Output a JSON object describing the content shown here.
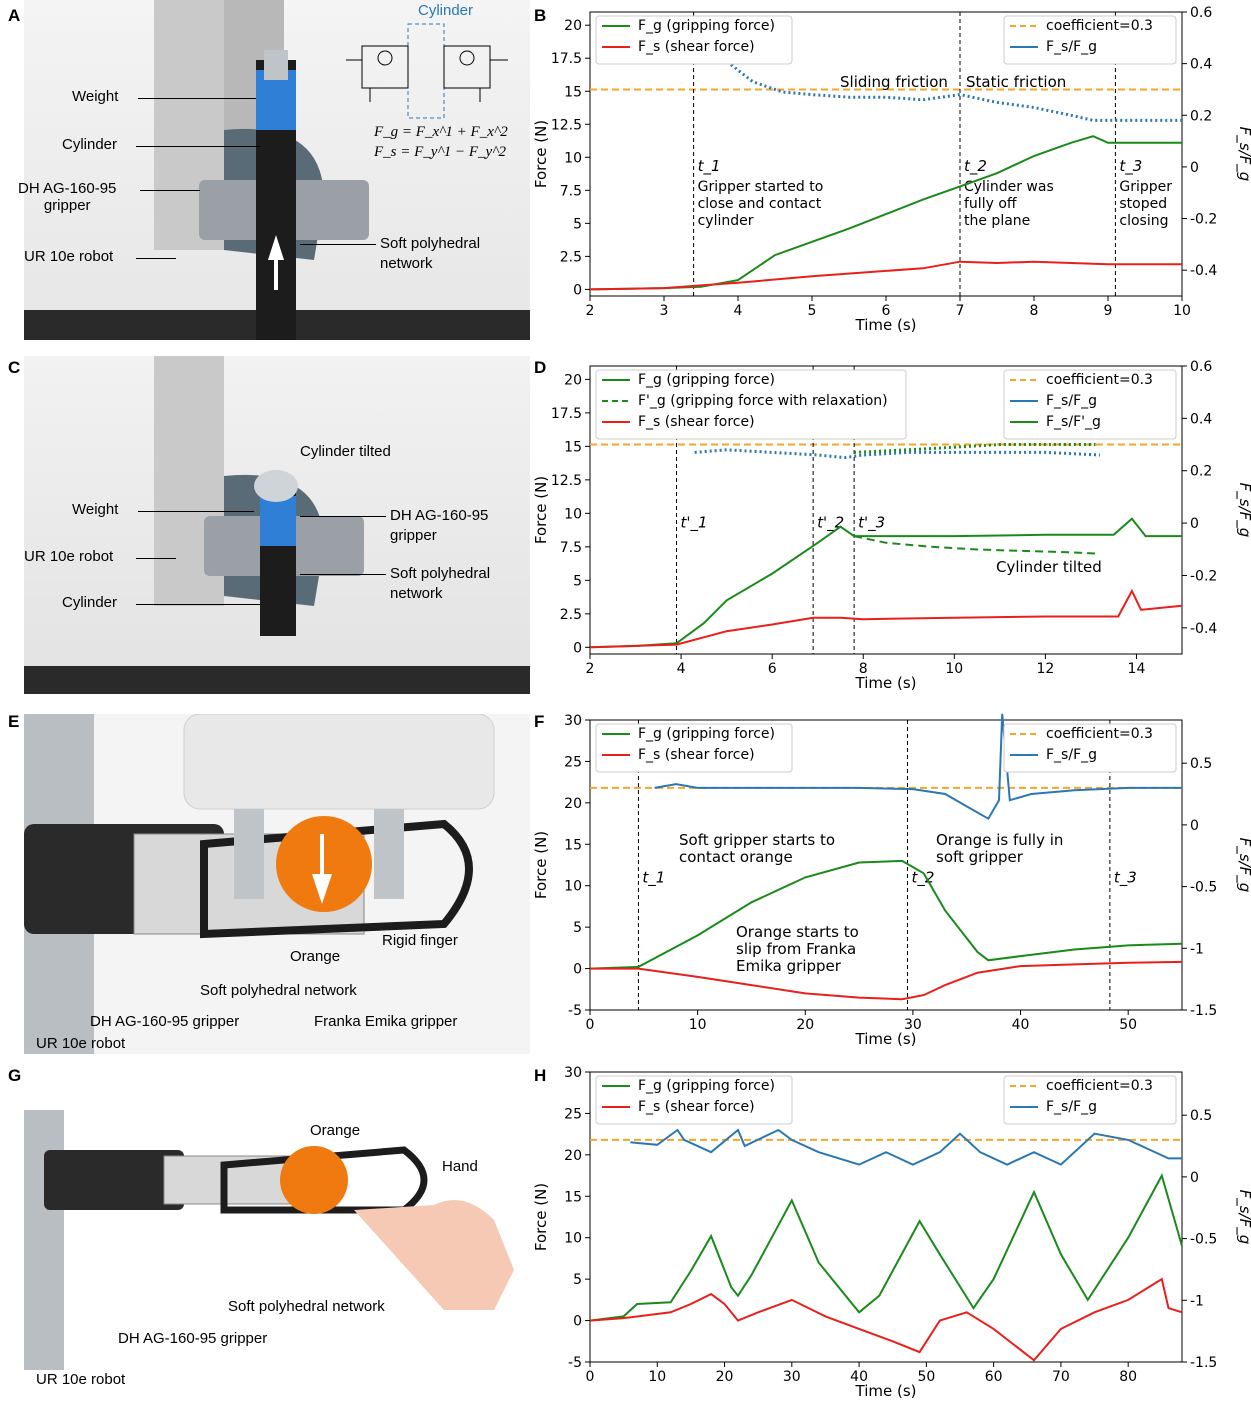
{
  "panels": {
    "a": {
      "letter": "A",
      "labels": {
        "weight": "Weight",
        "cylinder": "Cylinder",
        "gripper": "DH AG-160-95\ngripper",
        "robot": "UR 10e robot",
        "network": "Soft polyhedral\nnetwork"
      },
      "diagram": {
        "title": "Cylinder",
        "eq1": "F_g = F_x^1 + F_x^2",
        "eq2": "F_s = F_y^1 − F_y^2"
      }
    },
    "b": {
      "letter": "B"
    },
    "c": {
      "letter": "C",
      "labels": {
        "tilted": "Cylinder tilted",
        "weight": "Weight",
        "gripper": "DH AG-160-95\ngripper",
        "robot": "UR 10e robot",
        "network": "Soft polyhedral\nnetwork",
        "cylinder": "Cylinder"
      }
    },
    "d": {
      "letter": "D"
    },
    "e": {
      "letter": "E",
      "labels": {
        "rigid": "Rigid finger",
        "orange": "Orange",
        "network": "Soft polyhedral network",
        "dh": "DH AG-160-95 gripper",
        "franka": "Franka Emika gripper",
        "robot": "UR 10e robot"
      }
    },
    "f": {
      "letter": "F"
    },
    "g": {
      "letter": "G",
      "labels": {
        "orange": "Orange",
        "hand": "Hand",
        "network": "Soft polyhedral network",
        "dh": "DH AG-160-95 gripper",
        "robot": "UR 10e robot"
      }
    },
    "h": {
      "letter": "H"
    }
  },
  "colors": {
    "fg": "#1a8a1a",
    "fs": "#e8201c",
    "ratio": "#2a77b4",
    "coef": "#f5a623"
  },
  "chart_data": [
    {
      "id": "B",
      "type": "line",
      "xlabel": "Time (s)",
      "ylabel": "Force (N)",
      "y2label": "F_s/F_g",
      "xlim": [
        2,
        10
      ],
      "ylim": [
        -0.5,
        21
      ],
      "y2lim": [
        -0.5,
        0.6
      ],
      "xticks": [
        2,
        3,
        4,
        5,
        6,
        7,
        8,
        9,
        10
      ],
      "yticks": [
        0,
        2.5,
        5,
        7.5,
        10,
        12.5,
        15,
        17.5,
        20
      ],
      "y2ticks": [
        -0.4,
        -0.2,
        0,
        0.2,
        0.4,
        0.6
      ],
      "coefficient": 0.3,
      "legend_left": [
        "F_g (gripping force)",
        "F_s (shear force)"
      ],
      "legend_right": [
        "coefficient=0.3",
        "F_s/F_g"
      ],
      "series": [
        {
          "name": "F_g (gripping force)",
          "x": [
            2,
            3,
            3.5,
            4,
            4.5,
            5,
            5.5,
            6,
            6.5,
            7,
            7.5,
            8,
            8.5,
            8.8,
            9,
            10
          ],
          "y": [
            0,
            0.1,
            0.2,
            0.7,
            2.6,
            3.6,
            4.6,
            5.7,
            6.8,
            7.8,
            8.8,
            10.1,
            11.1,
            11.6,
            11.1,
            11.1
          ]
        },
        {
          "name": "F_s (shear force)",
          "x": [
            2,
            3,
            3.5,
            4,
            5,
            6,
            6.5,
            7,
            7.5,
            8,
            9,
            10
          ],
          "y": [
            0,
            0.1,
            0.3,
            0.5,
            1.0,
            1.4,
            1.6,
            2.1,
            2.0,
            2.1,
            1.9,
            1.9
          ]
        },
        {
          "name": "F_s/F_g",
          "x": [
            3.8,
            4.2,
            4.6,
            5.0,
            5.5,
            6.0,
            6.5,
            7.0,
            7.5,
            8.0,
            8.5,
            8.8,
            9.0,
            10
          ],
          "y": [
            0.42,
            0.33,
            0.29,
            0.28,
            0.27,
            0.27,
            0.26,
            0.28,
            0.25,
            0.23,
            0.2,
            0.18,
            0.18,
            0.18
          ]
        }
      ],
      "vlines": [
        {
          "x": 3.4,
          "label": "t_1",
          "text": "Gripper started to\nclose and contact\ncylinder"
        },
        {
          "x": 7.0,
          "label": "t_2",
          "text": "Cylinder was\nfully off\nthe plane"
        },
        {
          "x": 9.1,
          "label": "t_3",
          "text": "Gripper\nstoped\nclosing"
        }
      ],
      "annotations": [
        "Sliding friction",
        "Static friction"
      ]
    },
    {
      "id": "D",
      "type": "line",
      "xlabel": "Time (s)",
      "ylabel": "Force (N)",
      "y2label": "F_s/F_g",
      "xlim": [
        2,
        15
      ],
      "ylim": [
        -0.5,
        21
      ],
      "y2lim": [
        -0.5,
        0.6
      ],
      "xticks": [
        2,
        4,
        6,
        8,
        10,
        12,
        14
      ],
      "yticks": [
        0,
        2.5,
        5,
        7.5,
        10,
        12.5,
        15,
        17.5,
        20
      ],
      "y2ticks": [
        -0.4,
        -0.2,
        0,
        0.2,
        0.4,
        0.6
      ],
      "coefficient": 0.3,
      "legend_left": [
        "F_g (gripping force)",
        "F'_g (gripping force with relaxation)",
        "F_s (shear force)"
      ],
      "legend_right": [
        "coefficient=0.3",
        "F_s/F_g",
        "F_s/F'_g"
      ],
      "series": [
        {
          "name": "F_g (gripping force)",
          "x": [
            2,
            3,
            3.9,
            4.5,
            5,
            6,
            7,
            7.5,
            7.8,
            8.5,
            10,
            12,
            13.5,
            13.9,
            14.2,
            15
          ],
          "y": [
            0,
            0.1,
            0.3,
            1.8,
            3.5,
            5.5,
            7.8,
            9.0,
            8.3,
            8.3,
            8.3,
            8.4,
            8.4,
            9.6,
            8.3,
            8.3
          ]
        },
        {
          "name": "F'_g (gripping force with relaxation)",
          "x": [
            7.8,
            8.5,
            9.5,
            10.5,
            11.5,
            12.5,
            13.1
          ],
          "y": [
            8.3,
            7.8,
            7.5,
            7.3,
            7.2,
            7.1,
            7.0
          ]
        },
        {
          "name": "F_s (shear force)",
          "x": [
            2,
            3.9,
            5,
            6,
            6.9,
            7.5,
            8,
            10,
            12,
            13.6,
            13.9,
            14.1,
            15
          ],
          "y": [
            0,
            0.2,
            1.2,
            1.7,
            2.2,
            2.2,
            2.1,
            2.2,
            2.3,
            2.3,
            4.2,
            2.8,
            3.1
          ]
        },
        {
          "name": "F_s/F_g",
          "x": [
            4.3,
            5,
            6,
            7,
            7.6,
            8,
            9,
            10,
            11,
            12,
            13.2
          ],
          "y": [
            0.27,
            0.28,
            0.27,
            0.26,
            0.25,
            0.26,
            0.27,
            0.27,
            0.27,
            0.27,
            0.26
          ]
        },
        {
          "name": "F_s/F'_g",
          "x": [
            7.8,
            9,
            10,
            11,
            12,
            13.1
          ],
          "y": [
            0.27,
            0.28,
            0.29,
            0.3,
            0.3,
            0.3
          ]
        }
      ],
      "vlines": [
        {
          "x": 3.9,
          "label": "t'_1"
        },
        {
          "x": 6.9,
          "label": "t'_2"
        },
        {
          "x": 7.8,
          "label": "t'_3"
        }
      ],
      "annotations": [
        "Cylinder tilted"
      ]
    },
    {
      "id": "F",
      "type": "line",
      "xlabel": "Time (s)",
      "ylabel": "Force (N)",
      "y2label": "F_s/F_g",
      "xlim": [
        0,
        55
      ],
      "ylim": [
        -5,
        30
      ],
      "y2lim": [
        -1.5,
        0.85
      ],
      "xticks": [
        0,
        10,
        20,
        30,
        40,
        50
      ],
      "yticks": [
        -5,
        0,
        5,
        10,
        15,
        20,
        25,
        30
      ],
      "y2ticks": [
        -1.5,
        -1,
        -0.5,
        0,
        0.5
      ],
      "coefficient": 0.3,
      "legend_left": [
        "F_g (gripping force)",
        "F_s (shear force)"
      ],
      "legend_right": [
        "coefficient=0.3",
        "F_s/F_g"
      ],
      "series": [
        {
          "name": "F_g (gripping force)",
          "x": [
            0,
            4.5,
            10,
            15,
            20,
            25,
            29,
            31,
            33,
            36,
            37,
            40,
            45,
            50,
            55
          ],
          "y": [
            0,
            0.2,
            4.0,
            8.0,
            11.0,
            12.8,
            13.0,
            11.5,
            7.0,
            2.0,
            1.0,
            1.5,
            2.3,
            2.8,
            3.0
          ]
        },
        {
          "name": "F_s (shear force)",
          "x": [
            0,
            4.5,
            10,
            15,
            20,
            25,
            29,
            31,
            33,
            36,
            40,
            45,
            50,
            55
          ],
          "y": [
            0,
            0,
            -1.0,
            -2.0,
            -3.0,
            -3.5,
            -3.7,
            -3.2,
            -2.0,
            -0.5,
            0.3,
            0.5,
            0.7,
            0.8
          ]
        },
        {
          "name": "F_s/F_g",
          "x": [
            6,
            8,
            10,
            15,
            20,
            25,
            30,
            33,
            35,
            37,
            38,
            38.3,
            39,
            41,
            45,
            50,
            55
          ],
          "y": [
            0.3,
            0.33,
            0.3,
            0.3,
            0.3,
            0.3,
            0.29,
            0.25,
            0.15,
            0.05,
            0.2,
            0.9,
            0.2,
            0.25,
            0.28,
            0.3,
            0.3
          ]
        }
      ],
      "vlines": [
        {
          "x": 4.5,
          "label": "t_1"
        },
        {
          "x": 29.5,
          "label": "t_2"
        },
        {
          "x": 48.3,
          "label": "t_3"
        }
      ],
      "annotations": [
        "Soft gripper starts to\ncontact orange",
        "Orange starts to\nslip from Franka\nEmika gripper",
        "Orange is fully in\nsoft gripper"
      ]
    },
    {
      "id": "H",
      "type": "line",
      "xlabel": "Time (s)",
      "ylabel": "Force (N)",
      "y2label": "F_s/F_g",
      "xlim": [
        0,
        88
      ],
      "ylim": [
        -5,
        30
      ],
      "y2lim": [
        -1.5,
        0.85
      ],
      "xticks": [
        0,
        10,
        20,
        30,
        40,
        50,
        60,
        70,
        80
      ],
      "yticks": [
        -5,
        0,
        5,
        10,
        15,
        20,
        25,
        30
      ],
      "y2ticks": [
        -1.5,
        -1,
        -0.5,
        0,
        0.5
      ],
      "coefficient": 0.3,
      "legend_left": [
        "F_g (gripping force)",
        "F_s (shear force)"
      ],
      "legend_right": [
        "coefficient=0.3",
        "F_s/F_g"
      ],
      "series": [
        {
          "name": "F_g (gripping force)",
          "x": [
            0,
            5,
            7,
            12,
            15,
            18,
            21,
            22,
            24,
            30,
            34,
            40,
            43,
            49,
            52,
            57,
            60,
            66,
            70,
            74,
            80,
            85,
            88
          ],
          "y": [
            0,
            0.5,
            2.0,
            2.2,
            6.0,
            10.2,
            4.0,
            3.0,
            5.5,
            14.5,
            7.0,
            1.0,
            3.0,
            12.0,
            8.0,
            1.5,
            5.0,
            15.5,
            8.0,
            2.5,
            10.0,
            17.5,
            9.0
          ]
        },
        {
          "name": "F_s (shear force)",
          "x": [
            0,
            5,
            12,
            15,
            18,
            20,
            22,
            25,
            30,
            35,
            40,
            45,
            49,
            52,
            56,
            60,
            66,
            70,
            75,
            80,
            85,
            86,
            88
          ],
          "y": [
            0,
            0.3,
            1.0,
            2.0,
            3.2,
            2.0,
            0.0,
            1.0,
            2.5,
            0.5,
            -1.0,
            -2.5,
            -3.8,
            0.0,
            1.0,
            -1.0,
            -4.8,
            -1.0,
            1.0,
            2.5,
            5.0,
            1.5,
            1.0
          ]
        },
        {
          "name": "F_s/F_g",
          "x": [
            6,
            10,
            13,
            14,
            18,
            22,
            23,
            28,
            30,
            34,
            40,
            44,
            48,
            52,
            55,
            58,
            62,
            66,
            70,
            75,
            80,
            86,
            88
          ],
          "y": [
            0.28,
            0.26,
            0.38,
            0.3,
            0.2,
            0.38,
            0.25,
            0.38,
            0.3,
            0.2,
            0.1,
            0.2,
            0.1,
            0.2,
            0.35,
            0.2,
            0.1,
            0.2,
            0.1,
            0.35,
            0.3,
            0.15,
            0.15
          ]
        }
      ]
    }
  ]
}
